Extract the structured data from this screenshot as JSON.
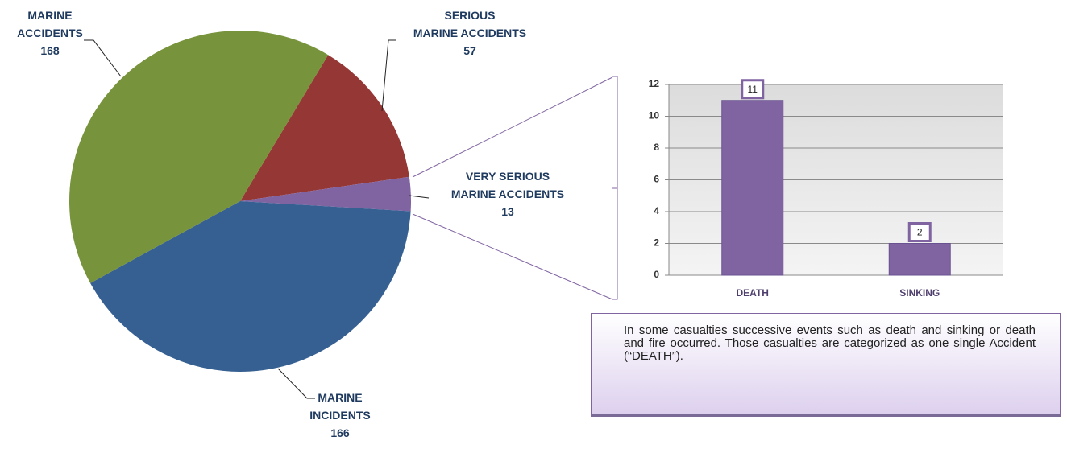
{
  "chart_data": [
    {
      "type": "pie",
      "categories": [
        "SERIOUS\nMARINE ACCIDENTS",
        "VERY SERIOUS\nMARINE ACCIDENTS",
        "MARINE\nINCIDENTS\n",
        "MARINE\nACCIDENTS"
      ],
      "values": [
        57,
        13,
        166,
        168
      ],
      "colors": [
        "#953735",
        "#8064a2",
        "#376092",
        "#77933c"
      ]
    },
    {
      "type": "bar",
      "categories": [
        "DEATH",
        "SINKING"
      ],
      "values": [
        11,
        2
      ],
      "color": "#8064a2",
      "ylim": [
        0,
        12
      ],
      "yticks": [
        0,
        2,
        4,
        6,
        8,
        10,
        12
      ],
      "grid": true
    }
  ],
  "note": "In some casualties successive events such as death and sinking or death and fire occurred. Those casualties are categorized as one single Accident (“DEATH”)."
}
